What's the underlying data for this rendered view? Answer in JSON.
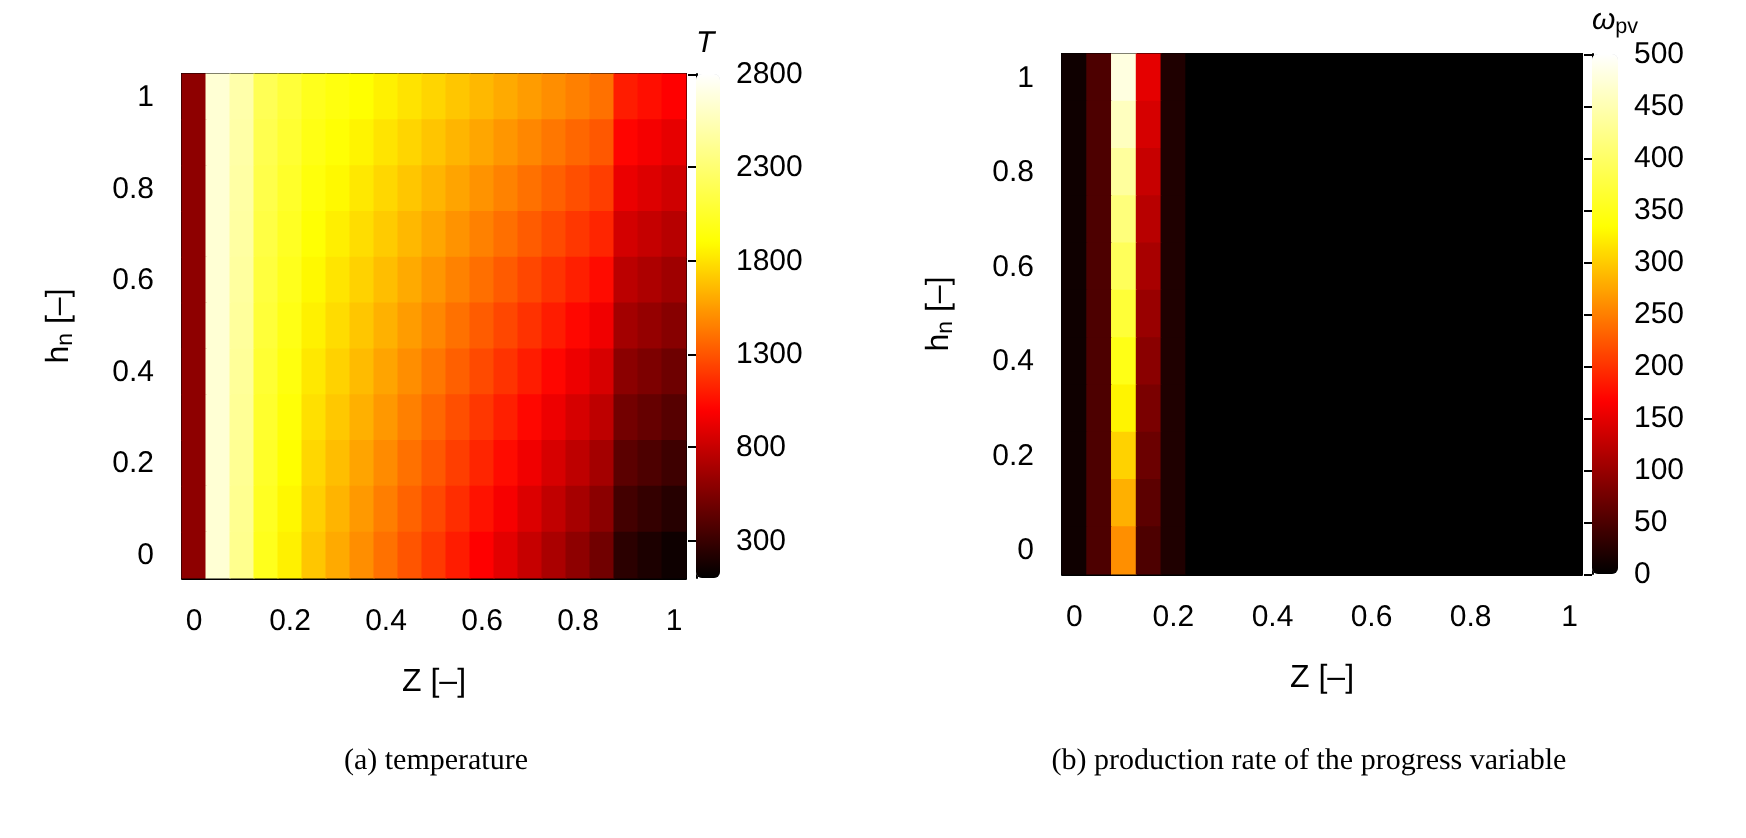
{
  "chart_data": [
    {
      "type": "heatmap",
      "title": "(a) temperature",
      "xlabel": "Z [–]",
      "ylabel": "h$_{n}$ [–]",
      "clabel": "T",
      "categories": [
        "0",
        null,
        null,
        null,
        "0.2",
        null,
        null,
        null,
        "0.4",
        null,
        null,
        null,
        "0.6",
        null,
        null,
        null,
        "0.8",
        null,
        null,
        null,
        "1"
      ],
      "y_categories": [
        "1",
        null,
        "0.8",
        null,
        "0.6",
        null,
        "0.4",
        null,
        "0.2",
        null,
        "0"
      ],
      "cells": [
        [
          600,
          2650,
          2500,
          2200,
          2100,
          2000,
          1950,
          1900,
          1850,
          1800,
          1750,
          1700,
          1650,
          1600,
          1550,
          1500,
          1450,
          1400,
          1100,
          1050,
          1000
        ],
        [
          600,
          2650,
          2490,
          2180,
          2075,
          1970,
          1915,
          1860,
          1805,
          1750,
          1695,
          1640,
          1585,
          1530,
          1475,
          1420,
          1365,
          1310,
          1015,
          965,
          915
        ],
        [
          600,
          2650,
          2480,
          2160,
          2050,
          1940,
          1880,
          1820,
          1760,
          1700,
          1640,
          1580,
          1520,
          1460,
          1400,
          1340,
          1280,
          1220,
          930,
          880,
          830
        ],
        [
          600,
          2650,
          2470,
          2140,
          2025,
          1910,
          1845,
          1780,
          1715,
          1650,
          1585,
          1520,
          1455,
          1390,
          1325,
          1260,
          1195,
          1130,
          845,
          795,
          745
        ],
        [
          600,
          2650,
          2460,
          2120,
          2000,
          1880,
          1810,
          1740,
          1670,
          1600,
          1530,
          1460,
          1390,
          1320,
          1250,
          1180,
          1110,
          1040,
          760,
          710,
          660
        ],
        [
          600,
          2650,
          2450,
          2100,
          1975,
          1850,
          1775,
          1700,
          1625,
          1550,
          1475,
          1400,
          1325,
          1250,
          1175,
          1100,
          1025,
          950,
          675,
          625,
          575
        ],
        [
          600,
          2650,
          2440,
          2080,
          1950,
          1820,
          1740,
          1660,
          1580,
          1500,
          1420,
          1340,
          1260,
          1180,
          1100,
          1020,
          940,
          860,
          590,
          540,
          490
        ],
        [
          600,
          2650,
          2430,
          2060,
          1925,
          1790,
          1705,
          1620,
          1535,
          1450,
          1365,
          1280,
          1195,
          1110,
          1025,
          940,
          855,
          770,
          505,
          455,
          405
        ],
        [
          600,
          2650,
          2420,
          2040,
          1900,
          1760,
          1670,
          1580,
          1490,
          1400,
          1310,
          1220,
          1130,
          1040,
          950,
          860,
          770,
          680,
          420,
          370,
          320
        ],
        [
          600,
          2650,
          2410,
          2020,
          1875,
          1730,
          1635,
          1540,
          1445,
          1350,
          1255,
          1160,
          1065,
          970,
          875,
          780,
          685,
          590,
          335,
          285,
          235
        ],
        [
          600,
          2650,
          2400,
          2000,
          1850,
          1700,
          1600,
          1500,
          1400,
          1300,
          1200,
          1100,
          1000,
          900,
          800,
          700,
          600,
          500,
          250,
          200,
          150
        ]
      ],
      "clim": [
        100,
        2800
      ],
      "cticks": [
        300,
        800,
        1300,
        1800,
        2300,
        2800
      ]
    },
    {
      "type": "heatmap",
      "title": "(b) production rate of the progress variable",
      "xlabel": "Z [–]",
      "ylabel": "h$_{n}$ [–]",
      "clabel": "ω$_{pv}$",
      "categories": [
        "0",
        null,
        null,
        null,
        "0.2",
        null,
        null,
        null,
        "0.4",
        null,
        null,
        null,
        "0.6",
        null,
        null,
        null,
        "0.8",
        null,
        null,
        null,
        "1"
      ],
      "y_categories": [
        "1",
        null,
        "0.8",
        null,
        "0.6",
        null,
        "0.4",
        null,
        "0.2",
        null,
        "0"
      ],
      "cells": [
        [
          10,
          50,
          480,
          150,
          20,
          0,
          0,
          0,
          0,
          0,
          0,
          0,
          0,
          0,
          0,
          0,
          0,
          0,
          0,
          0,
          0
        ],
        [
          10,
          50,
          458,
          140,
          20,
          0,
          0,
          0,
          0,
          0,
          0,
          0,
          0,
          0,
          0,
          0,
          0,
          0,
          0,
          0,
          0
        ],
        [
          10,
          50,
          436,
          130,
          20,
          0,
          0,
          0,
          0,
          0,
          0,
          0,
          0,
          0,
          0,
          0,
          0,
          0,
          0,
          0,
          0
        ],
        [
          10,
          50,
          414,
          120,
          20,
          0,
          0,
          0,
          0,
          0,
          0,
          0,
          0,
          0,
          0,
          0,
          0,
          0,
          0,
          0,
          0
        ],
        [
          10,
          50,
          392,
          110,
          20,
          0,
          0,
          0,
          0,
          0,
          0,
          0,
          0,
          0,
          0,
          0,
          0,
          0,
          0,
          0,
          0
        ],
        [
          10,
          50,
          370,
          100,
          20,
          0,
          0,
          0,
          0,
          0,
          0,
          0,
          0,
          0,
          0,
          0,
          0,
          0,
          0,
          0,
          0
        ],
        [
          10,
          50,
          348,
          90,
          20,
          0,
          0,
          0,
          0,
          0,
          0,
          0,
          0,
          0,
          0,
          0,
          0,
          0,
          0,
          0,
          0
        ],
        [
          10,
          50,
          326,
          80,
          20,
          0,
          0,
          0,
          0,
          0,
          0,
          0,
          0,
          0,
          0,
          0,
          0,
          0,
          0,
          0,
          0
        ],
        [
          10,
          50,
          304,
          70,
          20,
          0,
          0,
          0,
          0,
          0,
          0,
          0,
          0,
          0,
          0,
          0,
          0,
          0,
          0,
          0,
          0
        ],
        [
          10,
          50,
          282,
          60,
          20,
          0,
          0,
          0,
          0,
          0,
          0,
          0,
          0,
          0,
          0,
          0,
          0,
          0,
          0,
          0,
          0
        ],
        [
          10,
          50,
          260,
          50,
          20,
          0,
          0,
          0,
          0,
          0,
          0,
          0,
          0,
          0,
          0,
          0,
          0,
          0,
          0,
          0,
          0
        ]
      ],
      "clim": [
        0,
        500
      ],
      "cticks": [
        0,
        50,
        100,
        150,
        200,
        250,
        300,
        350,
        400,
        450,
        500
      ]
    }
  ]
}
